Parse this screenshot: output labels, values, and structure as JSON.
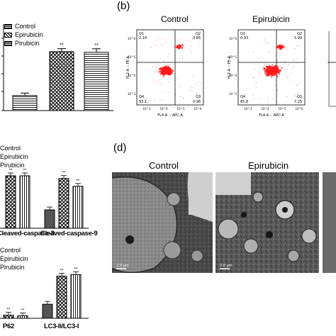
{
  "panels": {
    "b": "(b)",
    "d": "(d)"
  },
  "panel_a": {
    "legend": [
      "Control",
      "Epirubicin",
      "Pirubicin"
    ],
    "significance": "**",
    "chart_data": {
      "type": "bar",
      "categories": [
        "Control",
        "Epirubicin",
        "Pirubicin"
      ],
      "values": [
        11,
        43,
        42.5
      ],
      "errors": [
        1.8,
        2.2,
        2.6
      ],
      "ylim": [
        0,
        60
      ]
    }
  },
  "panel_b": {
    "plots": [
      {
        "title": "Control",
        "q1_label": "Q1",
        "q1": "2.14",
        "q2_label": "Q2",
        "q2": "3.85",
        "q3_label": "Q3",
        "q3": "0.96",
        "q4_label": "Q4",
        "q4": "93.1",
        "ylabel": "FL2-A :: PE-A",
        "xlabel": "FL4-A :: APC-A"
      },
      {
        "title": "Epirubicin",
        "q1_label": "Q1",
        "q1": "0.93",
        "q2_label": "Q2",
        "q2": "5.99",
        "q3_label": "Q3",
        "q3": "7.25",
        "q4_label": "Q4",
        "q4": "65.8",
        "ylabel": "FL2-A :: PE-A",
        "xlabel": "FL4-A :: APC-A"
      }
    ],
    "tick_labels": [
      "10^3",
      "10^4",
      "10^5",
      "10^6"
    ]
  },
  "panel_c1": {
    "legend": [
      "Control",
      "Epirubicin",
      "Pirubicin"
    ],
    "significance": "**",
    "chart_data": {
      "type": "bar",
      "categories": [
        "Cleaved-caspase-3",
        "Cleaved-caspase-9"
      ],
      "series": [
        {
          "name": "Control",
          "values": [
            null,
            0.35
          ]
        },
        {
          "name": "Epirubicin",
          "values": [
            1.0,
            0.95
          ]
        },
        {
          "name": "Pirubicin",
          "values": [
            1.0,
            0.8
          ]
        }
      ]
    },
    "xlabels": [
      "Cleaved-caspase-3",
      "Cleaved-caspase-9"
    ]
  },
  "panel_c2": {
    "legend": [
      "Control",
      "Epirubicin",
      "Pirubicin"
    ],
    "significance": "**",
    "chart_data": {
      "type": "bar",
      "categories": [
        "P62",
        "LC3-II/LC3-I"
      ],
      "series": [
        {
          "name": "Control",
          "values": [
            null,
            0.45
          ]
        },
        {
          "name": "Epirubicin",
          "values": [
            0.1,
            1.35
          ]
        },
        {
          "name": "Pirubicin",
          "values": [
            0.08,
            1.4
          ]
        }
      ]
    },
    "xlabels": [
      "P62",
      "LC3-II/LC3-I"
    ]
  },
  "panel_d": {
    "titles": [
      "Control",
      "Epirubicin"
    ],
    "scalebars": [
      "2.0 μm",
      "2.0 μm"
    ]
  }
}
